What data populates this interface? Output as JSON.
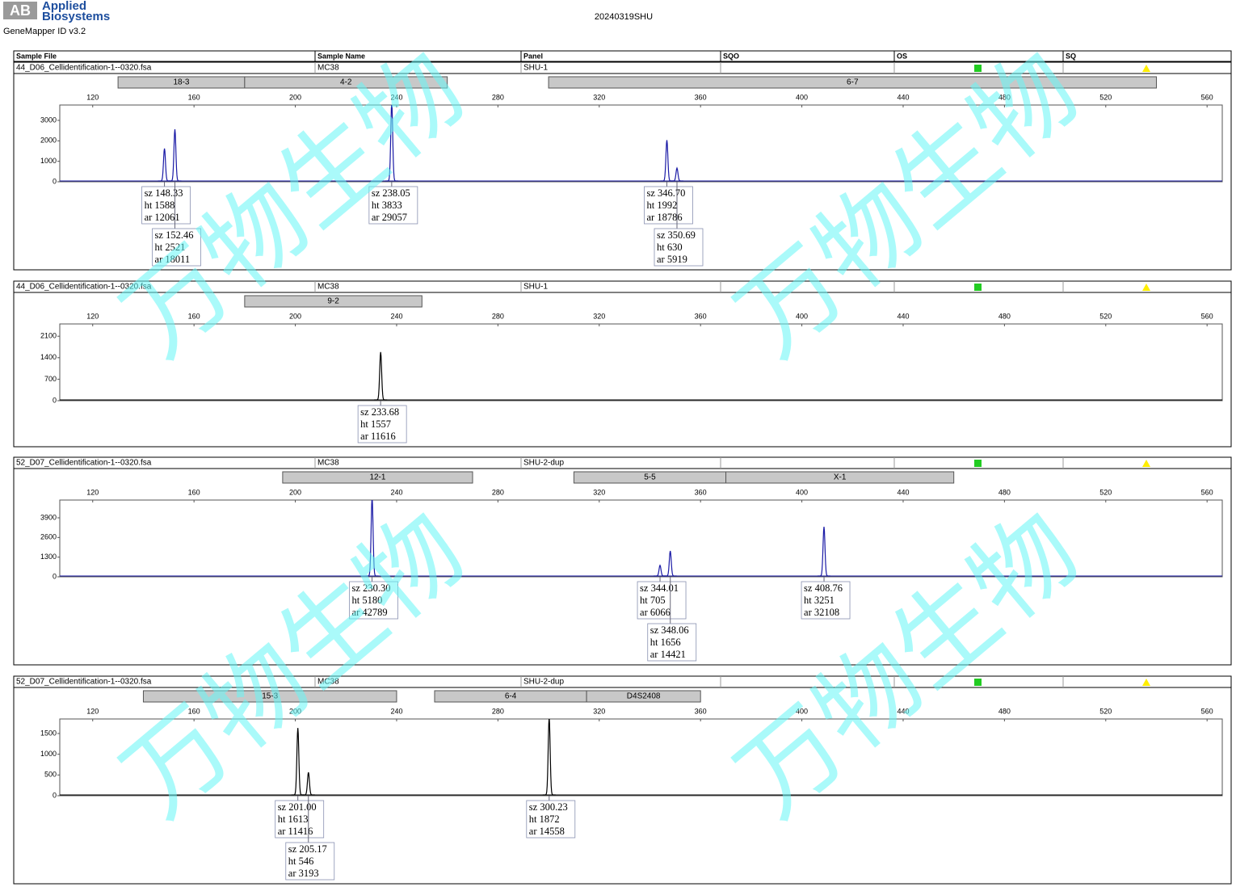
{
  "header": {
    "brand": [
      "Applied",
      "Biosystems"
    ],
    "software": "GeneMapper ID v3.2",
    "title": "20240319SHU",
    "watermark": "万物生物"
  },
  "columns": [
    "Sample File",
    "Sample Name",
    "Panel",
    "SQO",
    "OS",
    "SQ"
  ],
  "label_prefixes": [
    "sz",
    "ht",
    "ar"
  ],
  "chart_data": [
    {
      "type": "line",
      "sample_file": "44_D06_Cellidentification-1--0320.fsa",
      "sample_name": "MC38",
      "panel": "SHU-1",
      "color": "#1a1aa6",
      "bins": [
        {
          "name": "18-3",
          "range": [
            130,
            180
          ]
        },
        {
          "name": "4-2",
          "range": [
            180,
            260
          ]
        },
        {
          "name": "6-7",
          "range": [
            300,
            540
          ]
        }
      ],
      "xlim": [
        107,
        566
      ],
      "xticks": [
        120,
        160,
        200,
        240,
        280,
        320,
        360,
        400,
        440,
        480,
        520,
        560
      ],
      "ylim": [
        0,
        3750
      ],
      "yticks": [
        0,
        1000,
        2000,
        3000
      ],
      "peaks": [
        {
          "sz": 148.33,
          "ht": 1588,
          "ar": 12061
        },
        {
          "sz": 152.46,
          "ht": 2521,
          "ar": 18011
        },
        {
          "sz": 238.05,
          "ht": 3833,
          "ar": 29057
        },
        {
          "sz": 346.7,
          "sz_label": "346.70",
          "ht": 1992,
          "ar": 18786
        },
        {
          "sz": 350.69,
          "ht": 630,
          "ar": 5919
        }
      ]
    },
    {
      "type": "line",
      "sample_file": "44_D06_Cellidentification-1--0320.fsa",
      "sample_name": "MC38",
      "panel": "SHU-1",
      "color": "#000000",
      "bins": [
        {
          "name": "9-2",
          "range": [
            180,
            250
          ]
        }
      ],
      "xlim": [
        107,
        566
      ],
      "xticks": [
        120,
        160,
        200,
        240,
        280,
        320,
        360,
        400,
        440,
        480,
        520,
        560
      ],
      "ylim": [
        0,
        2500
      ],
      "yticks": [
        0,
        700,
        1400,
        2100
      ],
      "peaks": [
        {
          "sz": 233.68,
          "ht": 1557,
          "ar": 11616
        }
      ]
    },
    {
      "type": "line",
      "sample_file": "52_D07_Cellidentification-1--0320.fsa",
      "sample_name": "MC38",
      "panel": "SHU-2-dup",
      "color": "#1a1aa6",
      "bins": [
        {
          "name": "12-1",
          "range": [
            195,
            270
          ]
        },
        {
          "name": "5-5",
          "range": [
            310,
            370
          ]
        },
        {
          "name": "X-1",
          "range": [
            370,
            460
          ]
        }
      ],
      "xlim": [
        107,
        566
      ],
      "xticks": [
        120,
        160,
        200,
        240,
        280,
        320,
        360,
        400,
        440,
        480,
        520,
        560
      ],
      "ylim": [
        0,
        5075
      ],
      "yticks": [
        0,
        1300,
        2600,
        3900
      ],
      "peaks": [
        {
          "sz": 230.3,
          "sz_label": "230.30",
          "ht": 5180,
          "ar": 42789
        },
        {
          "sz": 344.01,
          "ht": 705,
          "ar": 6066
        },
        {
          "sz": 348.06,
          "ht": 1656,
          "ar": 14421
        },
        {
          "sz": 408.76,
          "ht": 3251,
          "ar": 32108
        }
      ]
    },
    {
      "type": "line",
      "sample_file": "52_D07_Cellidentification-1--0320.fsa",
      "sample_name": "MC38",
      "panel": "SHU-2-dup",
      "color": "#000000",
      "bins": [
        {
          "name": "15-3",
          "range": [
            140,
            240
          ]
        },
        {
          "name": "6-4",
          "range": [
            255,
            315
          ]
        },
        {
          "name": "D4S2408",
          "range": [
            315,
            360
          ]
        }
      ],
      "xlim": [
        107,
        566
      ],
      "xticks": [
        120,
        160,
        200,
        240,
        280,
        320,
        360,
        400,
        440,
        480,
        520,
        560
      ],
      "ylim": [
        0,
        1850
      ],
      "yticks": [
        0,
        500,
        1000,
        1500
      ],
      "peaks": [
        {
          "sz": 201,
          "sz_label": "201.00",
          "ht": 1613,
          "ar": 11416
        },
        {
          "sz": 205.17,
          "ht": 546,
          "ar": 3193
        },
        {
          "sz": 300.23,
          "ht": 1872,
          "ar": 14558
        }
      ]
    }
  ]
}
